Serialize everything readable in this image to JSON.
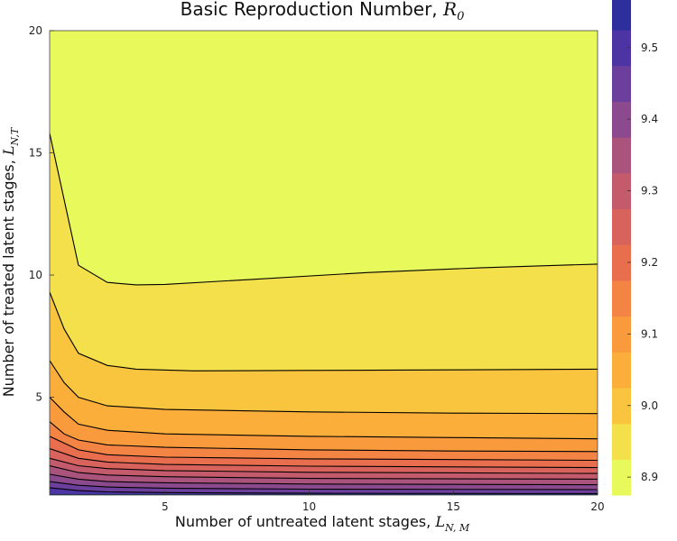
{
  "chart_data": {
    "type": "contour",
    "title": "Basic Reproduction Number,",
    "title_symbol": {
      "base": "R",
      "sub": "0"
    },
    "xlabel": "Number of untreated latent stages,",
    "xlabel_symbol": {
      "base": "L",
      "sub": "N, M"
    },
    "ylabel": "Number of treated latent stages,",
    "ylabel_symbol": {
      "base": "L",
      "sub": "N,T"
    },
    "xlim": [
      1,
      20
    ],
    "ylim": [
      1,
      20
    ],
    "x_ticks": [
      5,
      10,
      15,
      20
    ],
    "y_ticks": [
      5,
      10,
      15,
      20
    ],
    "grid": false,
    "colorbar": {
      "position": "right",
      "range": [
        8.875,
        9.525
      ],
      "band_width": 0.05,
      "ticks": [
        "8.9",
        "9.0",
        "9.1",
        "9.2",
        "9.3",
        "9.4",
        "9.5"
      ],
      "colors": [
        "#e8fa5b",
        "#f4e04a",
        "#f9c43e",
        "#fbaf3a",
        "#f99b3d",
        "#f48444",
        "#e86e4e",
        "#d8635c",
        "#c45b6c",
        "#aa537d",
        "#8c4a8e",
        "#6c3f9c",
        "#4c34a4",
        "#2e2e9c",
        "#1c2e7e",
        "#132e5e",
        "#0b2236"
      ]
    },
    "contours": [
      {
        "level": 8.95,
        "points": [
          [
            1,
            15.8
          ],
          [
            2,
            10.4
          ],
          [
            3,
            9.7
          ],
          [
            4,
            9.6
          ],
          [
            5,
            9.62
          ],
          [
            8,
            9.82
          ],
          [
            12,
            10.1
          ],
          [
            16,
            10.3
          ],
          [
            20,
            10.45
          ]
        ]
      },
      {
        "level": 9.0,
        "points": [
          [
            1,
            9.3
          ],
          [
            1.5,
            7.8
          ],
          [
            2,
            6.8
          ],
          [
            3,
            6.3
          ],
          [
            4,
            6.15
          ],
          [
            6,
            6.08
          ],
          [
            10,
            6.1
          ],
          [
            15,
            6.12
          ],
          [
            20,
            6.15
          ]
        ]
      },
      {
        "level": 9.05,
        "points": [
          [
            1,
            6.5
          ],
          [
            1.5,
            5.6
          ],
          [
            2,
            5.0
          ],
          [
            3,
            4.65
          ],
          [
            5,
            4.5
          ],
          [
            10,
            4.4
          ],
          [
            15,
            4.35
          ],
          [
            20,
            4.33
          ]
        ]
      },
      {
        "level": 9.1,
        "points": [
          [
            1,
            5.0
          ],
          [
            1.5,
            4.4
          ],
          [
            2,
            3.9
          ],
          [
            3,
            3.65
          ],
          [
            5,
            3.5
          ],
          [
            10,
            3.4
          ],
          [
            15,
            3.35
          ],
          [
            20,
            3.3
          ]
        ]
      },
      {
        "level": 9.15,
        "points": [
          [
            1,
            4.0
          ],
          [
            1.5,
            3.5
          ],
          [
            2,
            3.25
          ],
          [
            3,
            3.05
          ],
          [
            5,
            2.95
          ],
          [
            10,
            2.85
          ],
          [
            15,
            2.8
          ],
          [
            20,
            2.78
          ]
        ]
      },
      {
        "level": 9.2,
        "points": [
          [
            1,
            3.4
          ],
          [
            2,
            2.85
          ],
          [
            3,
            2.65
          ],
          [
            5,
            2.55
          ],
          [
            10,
            2.48
          ],
          [
            20,
            2.42
          ]
        ]
      },
      {
        "level": 9.25,
        "points": [
          [
            1,
            2.9
          ],
          [
            2,
            2.5
          ],
          [
            3,
            2.35
          ],
          [
            5,
            2.25
          ],
          [
            10,
            2.18
          ],
          [
            20,
            2.12
          ]
        ]
      },
      {
        "level": 9.3,
        "points": [
          [
            1,
            2.5
          ],
          [
            2,
            2.2
          ],
          [
            3,
            2.08
          ],
          [
            5,
            2.0
          ],
          [
            10,
            1.93
          ],
          [
            20,
            1.88
          ]
        ]
      },
      {
        "level": 9.35,
        "points": [
          [
            1,
            2.2
          ],
          [
            2,
            1.92
          ],
          [
            3,
            1.82
          ],
          [
            5,
            1.75
          ],
          [
            10,
            1.68
          ],
          [
            20,
            1.65
          ]
        ]
      },
      {
        "level": 9.4,
        "points": [
          [
            1,
            1.85
          ],
          [
            2,
            1.65
          ],
          [
            3,
            1.55
          ],
          [
            5,
            1.5
          ],
          [
            10,
            1.45
          ],
          [
            20,
            1.42
          ]
        ]
      },
      {
        "level": 9.45,
        "points": [
          [
            1,
            1.55
          ],
          [
            2,
            1.4
          ],
          [
            3,
            1.33
          ],
          [
            5,
            1.28
          ],
          [
            10,
            1.24
          ],
          [
            20,
            1.22
          ]
        ]
      },
      {
        "level": 9.5,
        "points": [
          [
            1,
            1.3
          ],
          [
            2,
            1.18
          ],
          [
            3,
            1.13
          ],
          [
            5,
            1.1
          ],
          [
            10,
            1.07
          ],
          [
            20,
            1.06
          ]
        ]
      }
    ]
  }
}
